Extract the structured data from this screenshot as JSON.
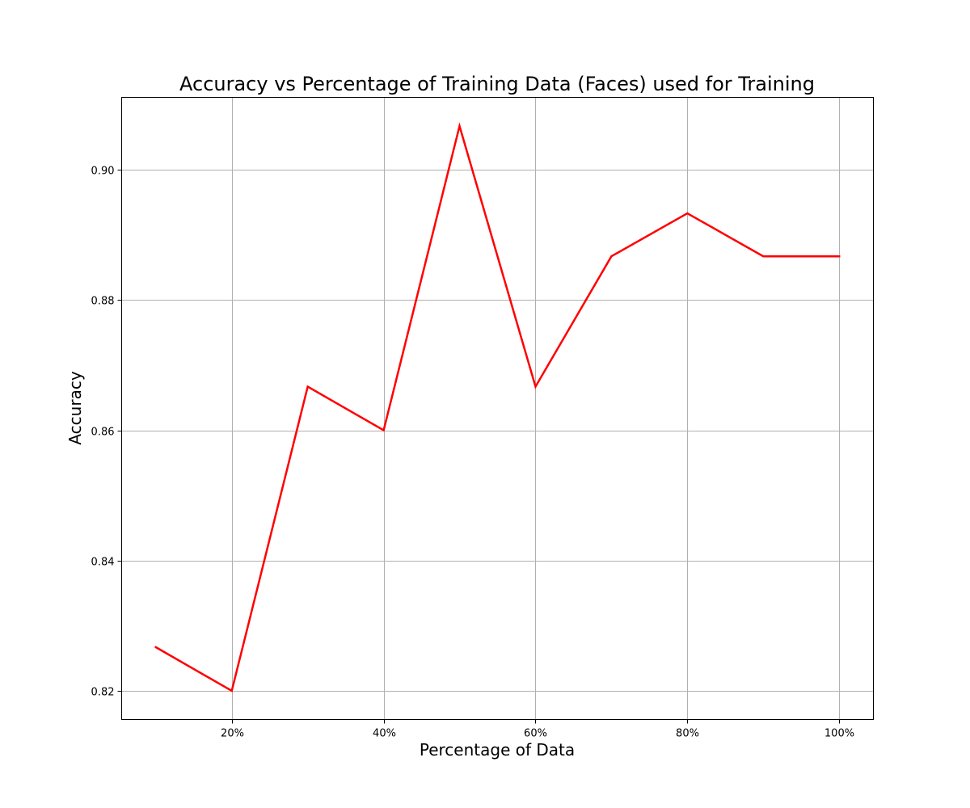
{
  "chart_data": {
    "type": "line",
    "title": "Accuracy vs Percentage of Training Data (Faces) used for Training",
    "xlabel": "Percentage of Data",
    "ylabel": "Accuracy",
    "grid": true,
    "xlim": [
      5.5,
      104.5
    ],
    "ylim": [
      0.8156,
      0.9111
    ],
    "x_ticks": [
      20,
      40,
      60,
      80,
      100
    ],
    "x_tick_labels": [
      "20%",
      "40%",
      "60%",
      "80%",
      "100%"
    ],
    "y_ticks": [
      0.82,
      0.84,
      0.86,
      0.88,
      0.9
    ],
    "y_tick_labels": [
      "0.82",
      "0.84",
      "0.86",
      "0.88",
      "0.90"
    ],
    "series": [
      {
        "color": "#ff0000",
        "x": [
          10,
          20,
          30,
          40,
          50,
          60,
          70,
          80,
          90,
          100
        ],
        "y": [
          0.8267,
          0.82,
          0.8667,
          0.86,
          0.9067,
          0.8667,
          0.8867,
          0.8933,
          0.8867,
          0.8867
        ]
      }
    ]
  }
}
